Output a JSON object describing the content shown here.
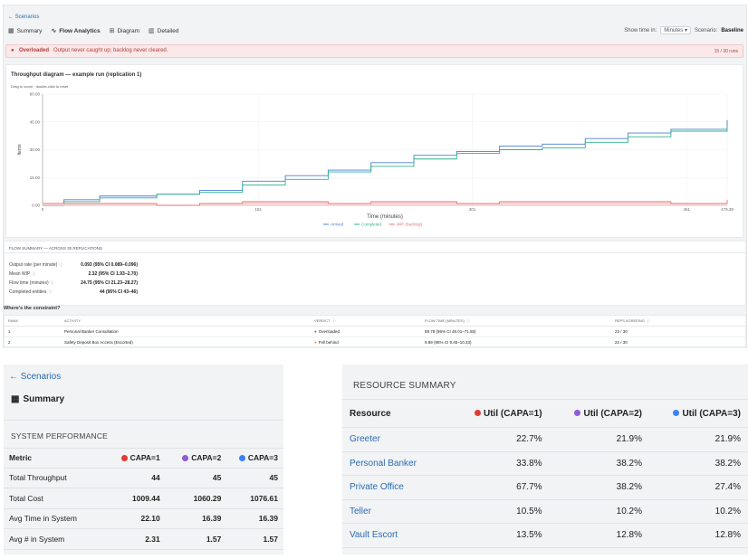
{
  "nav": {
    "back": "← Scenarios"
  },
  "tabs": [
    {
      "label": "Summary",
      "icon": "table-icon"
    },
    {
      "label": "Flow Analytics",
      "icon": "activity-icon"
    },
    {
      "label": "Diagram",
      "icon": "diagram-icon"
    },
    {
      "label": "Detailed",
      "icon": "bar-chart-icon"
    }
  ],
  "controls": {
    "show_time_label": "Show time in:",
    "time_unit": "Minutes",
    "scenario_label": "Scenario:",
    "scenario_value": "Baseline"
  },
  "alert": {
    "status": "Overloaded",
    "message": "Output never caught up; backlog never cleared.",
    "count": "15 / 30 runs"
  },
  "chart_data": {
    "type": "line",
    "title": "Throughput diagram — example run (replication 1)",
    "hint": "Drag to zoom · double-click to reset",
    "xlabel": "Time (minutes)",
    "ylabel": "Items",
    "xlim": [
      0,
      479.39
    ],
    "ylim": [
      0,
      60
    ],
    "x_ticks": [
      "0",
      "151",
      "301",
      "451",
      "479.39"
    ],
    "y_ticks": [
      "0.00",
      "15.00",
      "30.00",
      "45.00",
      "60.00"
    ],
    "legend_position": "bottom-center",
    "series": [
      {
        "name": "Arrived",
        "color": "#4a7fd6",
        "x": [
          0,
          15,
          40,
          80,
          110,
          140,
          170,
          200,
          230,
          260,
          290,
          320,
          350,
          380,
          410,
          440,
          479.39
        ],
        "y": [
          1,
          3,
          5,
          6,
          8,
          13,
          16,
          19,
          23,
          27,
          29,
          32,
          33,
          36,
          39,
          41,
          46
        ]
      },
      {
        "name": "Completed",
        "color": "#2db38a",
        "x": [
          0,
          15,
          40,
          80,
          110,
          140,
          170,
          200,
          230,
          260,
          290,
          320,
          350,
          380,
          410,
          440,
          479.39
        ],
        "y": [
          0,
          2,
          4,
          6,
          7,
          11,
          14,
          18,
          21,
          25,
          28,
          30,
          31,
          34,
          37,
          40,
          43
        ]
      },
      {
        "name": "WIP (backlog)",
        "color": "#e57373",
        "x": [
          0,
          15,
          40,
          80,
          110,
          140,
          170,
          200,
          230,
          260,
          290,
          320,
          350,
          380,
          410,
          440,
          479.39
        ],
        "y": [
          1,
          1,
          1,
          0,
          1,
          2,
          2,
          1,
          2,
          2,
          1,
          2,
          2,
          2,
          2,
          1,
          3
        ]
      }
    ]
  },
  "flow_summary": {
    "title": "FLOW SUMMARY — ACROSS 30 REPLICATIONS",
    "rows": [
      {
        "label": "Output rate (per minute)",
        "value": "0.093 (95% CI 0.089–0.096)"
      },
      {
        "label": "Mean WIP",
        "value": "2.32 (95% CI 1.93–2.70)"
      },
      {
        "label": "Flow time (minutes)",
        "value": "24.75 (95% CI 21.23–28.27)"
      },
      {
        "label": "Completed entities",
        "value": "44 (95% CI 43–46)"
      }
    ]
  },
  "constraint": {
    "title": "Where's the constraint?",
    "headers": [
      "RANK",
      "ACTIVITY",
      "VERDICT",
      "FLOW TIME (MINUTES)",
      "REPS AGREEING"
    ],
    "rows": [
      {
        "rank": "1",
        "activity": "Personal Banker Consultation",
        "verdict": "Overloaded",
        "verdict_color": "#d93b3b",
        "flow": "59.78 (95% CI 48.01–71.55)",
        "reps": "23 / 30"
      },
      {
        "rank": "2",
        "activity": "Safety Deposit Box Access (Escorted)",
        "verdict": "Fell behind",
        "verdict_color": "#e89b2c",
        "flow": "9.89 (95% CI 9.45–10.33)",
        "reps": "22 / 30"
      }
    ]
  },
  "bottom_left": {
    "back": "← Scenarios",
    "tab": "Summary",
    "section": "SYSTEM PERFORMANCE",
    "headers": [
      "Metric",
      "CAPA=1",
      "CAPA=2",
      "CAPA=3"
    ],
    "capa_colors": [
      "#e53935",
      "#8e5bd9",
      "#3b82f6"
    ],
    "rows": [
      {
        "metric": "Total Throughput",
        "v": [
          "44",
          "45",
          "45"
        ]
      },
      {
        "metric": "Total Cost",
        "v": [
          "1009.44",
          "1060.29",
          "1076.61"
        ]
      },
      {
        "metric": "Avg Time in System",
        "v": [
          "22.10",
          "16.39",
          "16.39"
        ]
      },
      {
        "metric": "Avg # in System",
        "v": [
          "2.31",
          "1.57",
          "1.57"
        ]
      }
    ]
  },
  "resource_summary": {
    "title": "RESOURCE SUMMARY",
    "headers": [
      "Resource",
      "Util (CAPA=1)",
      "Util (CAPA=2)",
      "Util (CAPA=3)"
    ],
    "rows": [
      {
        "name": "Greeter",
        "v": [
          "22.7%",
          "21.9%",
          "21.9%"
        ]
      },
      {
        "name": "Personal Banker",
        "v": [
          "33.8%",
          "38.2%",
          "38.2%"
        ]
      },
      {
        "name": "Private Office",
        "v": [
          "67.7%",
          "38.2%",
          "27.4%"
        ]
      },
      {
        "name": "Teller",
        "v": [
          "10.5%",
          "10.2%",
          "10.2%"
        ]
      },
      {
        "name": "Vault Escort",
        "v": [
          "13.5%",
          "12.8%",
          "12.8%"
        ]
      }
    ]
  }
}
